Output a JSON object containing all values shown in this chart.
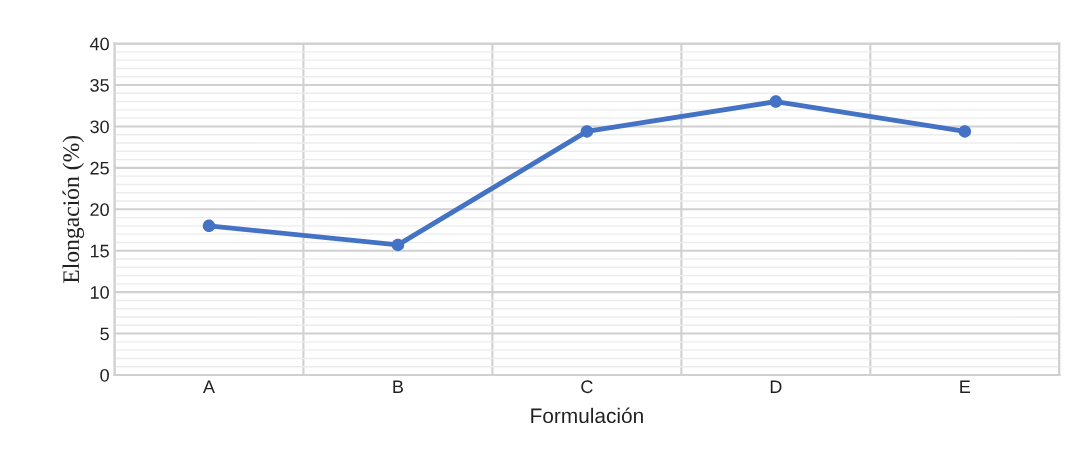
{
  "chart_data": {
    "type": "line",
    "xlabel": "Formulación",
    "ylabel": "Elongación (%)",
    "categories": [
      "A",
      "B",
      "C",
      "D",
      "E"
    ],
    "series": [
      {
        "color": "#4472c4",
        "values": [
          18,
          15.7,
          29.4,
          33,
          29.4
        ]
      }
    ],
    "ylim": [
      0,
      40
    ],
    "yticks": [
      0,
      5,
      10,
      15,
      20,
      25,
      30,
      35,
      40
    ],
    "grid": true,
    "marker": "circle",
    "line_style": "solid",
    "legend": false
  }
}
